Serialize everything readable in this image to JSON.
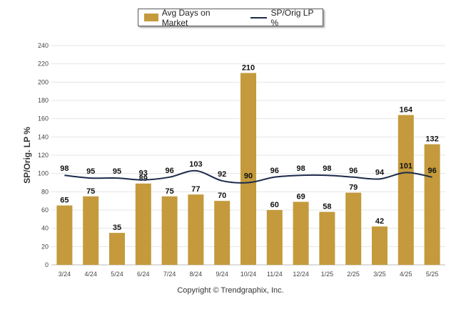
{
  "chart_data": {
    "type": "bar",
    "categories": [
      "3/24",
      "4/24",
      "5/24",
      "6/24",
      "7/24",
      "8/24",
      "9/24",
      "10/24",
      "11/24",
      "12/24",
      "1/25",
      "2/25",
      "3/25",
      "4/25",
      "5/25"
    ],
    "series": [
      {
        "name": "Avg Days on Market",
        "type": "bar",
        "color": "#c49a3c",
        "values": [
          65,
          75,
          35,
          89,
          75,
          77,
          70,
          210,
          60,
          69,
          58,
          79,
          42,
          164,
          132
        ]
      },
      {
        "name": "SP/Orig LP %",
        "type": "line",
        "color": "#1b2a4a",
        "values": [
          98,
          95,
          95,
          93,
          96,
          103,
          92,
          90,
          96,
          98,
          98,
          96,
          94,
          101,
          96
        ]
      }
    ],
    "ylabel": "SP/Orig. LP %",
    "ylim": [
      0,
      240
    ],
    "yticks": [
      0,
      20,
      40,
      60,
      80,
      100,
      120,
      140,
      160,
      180,
      200,
      220,
      240
    ],
    "grid": true,
    "legend_position": "top-center"
  },
  "legend": {
    "bar_label": "Avg Days on Market",
    "line_label": "SP/Orig LP %"
  },
  "footer": "Copyright © Trendgraphix, Inc."
}
